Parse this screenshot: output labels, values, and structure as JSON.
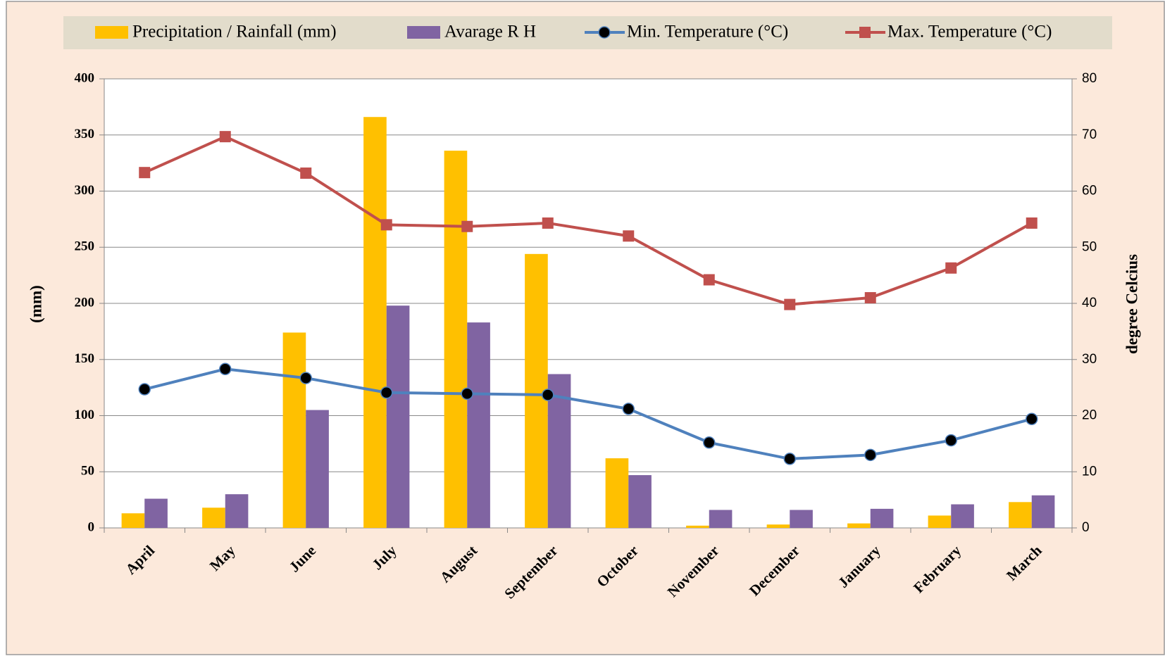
{
  "chart_data": {
    "type": "bar",
    "categories": [
      "April",
      "May",
      "June",
      "July",
      "August",
      "September",
      "October",
      "November",
      "December",
      "January",
      "February",
      "March"
    ],
    "series": [
      {
        "name": "Precipitation / Rainfall (mm)",
        "type": "bar",
        "color": "#ffc000",
        "values": [
          13,
          18,
          174,
          366,
          336,
          244,
          62,
          2,
          3,
          4,
          11,
          23
        ]
      },
      {
        "name": "Avarage R H",
        "type": "bar",
        "color": "#8064a2",
        "values": [
          26,
          30,
          105,
          198,
          183,
          137,
          47,
          16,
          16,
          17,
          21,
          29
        ]
      },
      {
        "name": "Min. Temperature (°C)",
        "type": "line",
        "marker": "circle",
        "color": "#4f81bd",
        "axis": "y2",
        "values": [
          24.7,
          28.3,
          26.7,
          24.1,
          23.9,
          23.7,
          21.2,
          15.2,
          12.3,
          13.0,
          15.6,
          19.4
        ]
      },
      {
        "name": "Max. Temperature (°C)",
        "type": "line",
        "marker": "square",
        "color": "#c0504d",
        "axis": "y2",
        "values": [
          63.3,
          69.7,
          63.2,
          54.0,
          53.7,
          54.3,
          52.0,
          44.2,
          39.8,
          41.0,
          46.3,
          54.3
        ]
      }
    ],
    "ylabel": "(mm)",
    "y2label": "degree Celcius",
    "ylim": [
      0,
      400
    ],
    "yticks": [
      0,
      50,
      100,
      150,
      200,
      250,
      300,
      350,
      400
    ],
    "y2lim": [
      0,
      80
    ],
    "y2ticks": [
      0,
      10,
      20,
      30,
      40,
      50,
      60,
      70,
      80
    ],
    "grid": true,
    "legend": "top"
  }
}
